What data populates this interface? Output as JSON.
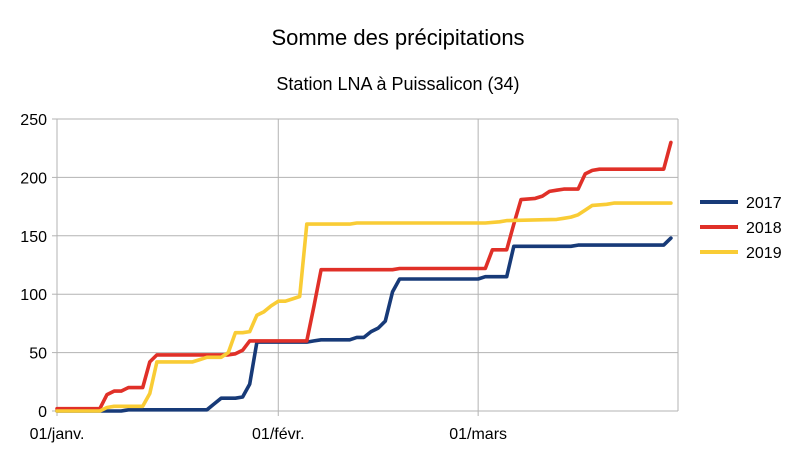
{
  "chart_data": {
    "type": "line",
    "title": "Somme des précipitations",
    "subtitle": "Station LNA à Puissalicon (34)",
    "xlabel": "",
    "ylabel": "",
    "xlim": [
      0,
      87
    ],
    "ylim": [
      0,
      250
    ],
    "y_ticks": [
      0,
      50,
      100,
      150,
      200,
      250
    ],
    "x_ticks": [
      {
        "label": "01/janv.",
        "value": 0
      },
      {
        "label": "01/févr.",
        "value": 31
      },
      {
        "label": "01/mars",
        "value": 59
      }
    ],
    "grid": true,
    "legend_position": "right",
    "series": [
      {
        "name": "2017",
        "color": "#173a78",
        "points": [
          [
            0,
            0
          ],
          [
            9,
            0
          ],
          [
            10,
            1
          ],
          [
            21,
            1
          ],
          [
            22,
            6
          ],
          [
            23,
            11
          ],
          [
            25,
            11
          ],
          [
            26,
            12
          ],
          [
            27,
            23
          ],
          [
            28,
            59
          ],
          [
            35,
            59
          ],
          [
            36,
            60
          ],
          [
            37,
            61
          ],
          [
            41,
            61
          ],
          [
            42,
            63
          ],
          [
            43,
            63
          ],
          [
            44,
            68
          ],
          [
            45,
            71
          ],
          [
            46,
            77
          ],
          [
            47,
            102
          ],
          [
            48,
            113
          ],
          [
            59,
            113
          ],
          [
            60,
            115
          ],
          [
            63,
            115
          ],
          [
            64,
            141
          ],
          [
            72,
            141
          ],
          [
            73,
            142
          ],
          [
            85,
            142
          ],
          [
            86,
            148
          ]
        ]
      },
      {
        "name": "2018",
        "color": "#e03028",
        "points": [
          [
            0,
            2
          ],
          [
            6,
            2
          ],
          [
            7,
            14
          ],
          [
            8,
            17
          ],
          [
            9,
            17
          ],
          [
            10,
            20
          ],
          [
            12,
            20
          ],
          [
            13,
            42
          ],
          [
            14,
            48
          ],
          [
            23,
            48
          ],
          [
            24,
            48
          ],
          [
            25,
            49
          ],
          [
            26,
            52
          ],
          [
            27,
            60
          ],
          [
            35,
            60
          ],
          [
            36,
            90
          ],
          [
            37,
            121
          ],
          [
            47,
            121
          ],
          [
            48,
            122
          ],
          [
            60,
            122
          ],
          [
            61,
            138
          ],
          [
            63,
            138
          ],
          [
            64,
            160
          ],
          [
            65,
            181
          ],
          [
            67,
            182
          ],
          [
            68,
            184
          ],
          [
            69,
            188
          ],
          [
            70,
            189
          ],
          [
            71,
            190
          ],
          [
            73,
            190
          ],
          [
            74,
            203
          ],
          [
            75,
            206
          ],
          [
            76,
            207
          ],
          [
            85,
            207
          ],
          [
            86,
            230
          ]
        ]
      },
      {
        "name": "2019",
        "color": "#f9cc35",
        "points": [
          [
            0,
            0
          ],
          [
            6,
            0
          ],
          [
            7,
            3
          ],
          [
            8,
            4
          ],
          [
            10,
            4
          ],
          [
            12,
            4
          ],
          [
            13,
            15
          ],
          [
            14,
            42
          ],
          [
            19,
            42
          ],
          [
            20,
            44
          ],
          [
            21,
            46
          ],
          [
            23,
            46
          ],
          [
            24,
            50
          ],
          [
            25,
            67
          ],
          [
            26,
            67
          ],
          [
            27,
            68
          ],
          [
            28,
            82
          ],
          [
            29,
            85
          ],
          [
            30,
            90
          ],
          [
            31,
            94
          ],
          [
            32,
            94
          ],
          [
            33,
            96
          ],
          [
            34,
            98
          ],
          [
            35,
            160
          ],
          [
            41,
            160
          ],
          [
            42,
            161
          ],
          [
            60,
            161
          ],
          [
            62,
            162
          ],
          [
            63,
            163
          ],
          [
            70,
            164
          ],
          [
            71,
            165
          ],
          [
            72,
            166
          ],
          [
            73,
            168
          ],
          [
            74,
            172
          ],
          [
            75,
            176
          ],
          [
            77,
            177
          ],
          [
            78,
            178
          ],
          [
            86,
            178
          ]
        ]
      }
    ]
  }
}
